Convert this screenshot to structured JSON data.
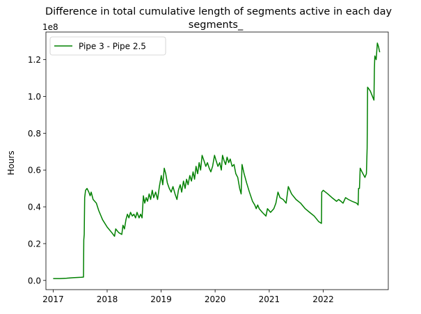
{
  "chart_data": {
    "type": "line",
    "title_line1": "Difference in total cumulative length of segments active in each day",
    "title_line2": "segments_",
    "xlabel": "",
    "ylabel": "Hours",
    "offset_label": "1e8",
    "y_scale_multiplier": 100000000,
    "ylim": [
      -0.05,
      1.35
    ],
    "xlim": [
      "2016-11-13",
      "2023-03-17"
    ],
    "yticks": [
      0.0,
      0.2,
      0.4,
      0.6,
      0.8,
      1.0,
      1.2
    ],
    "ytick_labels": [
      "0.0",
      "0.2",
      "0.4",
      "0.6",
      "0.8",
      "1.0",
      "1.2"
    ],
    "xticks": [
      "2017-01-01",
      "2018-01-01",
      "2019-01-01",
      "2020-01-01",
      "2021-01-01",
      "2022-01-01"
    ],
    "xtick_labels": [
      "2017",
      "2018",
      "2019",
      "2020",
      "2021",
      "2022"
    ],
    "grid": false,
    "legend_position": "upper-left",
    "series": [
      {
        "name": "Pipe 3 - Pipe 2.5",
        "color": "#008000",
        "points": [
          [
            "2017-01-01",
            0.01
          ],
          [
            "2017-02-15",
            0.01
          ],
          [
            "2017-04-01",
            0.012
          ],
          [
            "2017-05-15",
            0.015
          ],
          [
            "2017-07-10",
            0.017
          ],
          [
            "2017-07-25",
            0.018
          ],
          [
            "2017-07-27",
            0.22
          ],
          [
            "2017-07-30",
            0.25
          ],
          [
            "2017-08-02",
            0.45
          ],
          [
            "2017-08-08",
            0.49
          ],
          [
            "2017-08-18",
            0.5
          ],
          [
            "2017-08-30",
            0.48
          ],
          [
            "2017-09-08",
            0.46
          ],
          [
            "2017-09-15",
            0.48
          ],
          [
            "2017-09-28",
            0.44
          ],
          [
            "2017-10-20",
            0.42
          ],
          [
            "2017-11-05",
            0.38
          ],
          [
            "2017-12-01",
            0.33
          ],
          [
            "2018-01-01",
            0.29
          ],
          [
            "2018-02-01",
            0.26
          ],
          [
            "2018-02-20",
            0.24
          ],
          [
            "2018-02-28",
            0.28
          ],
          [
            "2018-03-20",
            0.26
          ],
          [
            "2018-04-10",
            0.25
          ],
          [
            "2018-04-18",
            0.3
          ],
          [
            "2018-04-28",
            0.28
          ],
          [
            "2018-05-08",
            0.33
          ],
          [
            "2018-05-18",
            0.36
          ],
          [
            "2018-05-28",
            0.34
          ],
          [
            "2018-06-08",
            0.37
          ],
          [
            "2018-06-20",
            0.35
          ],
          [
            "2018-07-01",
            0.36
          ],
          [
            "2018-07-12",
            0.34
          ],
          [
            "2018-07-22",
            0.37
          ],
          [
            "2018-08-05",
            0.34
          ],
          [
            "2018-08-15",
            0.36
          ],
          [
            "2018-08-25",
            0.34
          ],
          [
            "2018-09-03",
            0.46
          ],
          [
            "2018-09-12",
            0.42
          ],
          [
            "2018-09-22",
            0.45
          ],
          [
            "2018-10-01",
            0.43
          ],
          [
            "2018-10-12",
            0.47
          ],
          [
            "2018-10-22",
            0.44
          ],
          [
            "2018-11-02",
            0.49
          ],
          [
            "2018-11-12",
            0.45
          ],
          [
            "2018-11-25",
            0.48
          ],
          [
            "2018-12-08",
            0.44
          ],
          [
            "2018-12-20",
            0.51
          ],
          [
            "2019-01-02",
            0.57
          ],
          [
            "2019-01-12",
            0.52
          ],
          [
            "2019-01-22",
            0.61
          ],
          [
            "2019-02-01",
            0.58
          ],
          [
            "2019-02-12",
            0.53
          ],
          [
            "2019-02-25",
            0.5
          ],
          [
            "2019-03-10",
            0.48
          ],
          [
            "2019-03-22",
            0.51
          ],
          [
            "2019-04-05",
            0.47
          ],
          [
            "2019-04-18",
            0.44
          ],
          [
            "2019-04-28",
            0.49
          ],
          [
            "2019-05-10",
            0.52
          ],
          [
            "2019-05-20",
            0.48
          ],
          [
            "2019-06-01",
            0.54
          ],
          [
            "2019-06-12",
            0.5
          ],
          [
            "2019-06-22",
            0.55
          ],
          [
            "2019-07-02",
            0.52
          ],
          [
            "2019-07-14",
            0.57
          ],
          [
            "2019-07-25",
            0.54
          ],
          [
            "2019-08-05",
            0.59
          ],
          [
            "2019-08-15",
            0.55
          ],
          [
            "2019-08-25",
            0.62
          ],
          [
            "2019-09-05",
            0.58
          ],
          [
            "2019-09-15",
            0.64
          ],
          [
            "2019-09-25",
            0.6
          ],
          [
            "2019-10-05",
            0.68
          ],
          [
            "2019-10-18",
            0.65
          ],
          [
            "2019-10-30",
            0.62
          ],
          [
            "2019-11-10",
            0.64
          ],
          [
            "2019-11-22",
            0.61
          ],
          [
            "2019-12-03",
            0.59
          ],
          [
            "2019-12-15",
            0.62
          ],
          [
            "2019-12-28",
            0.68
          ],
          [
            "2020-01-08",
            0.65
          ],
          [
            "2020-01-20",
            0.62
          ],
          [
            "2020-02-01",
            0.64
          ],
          [
            "2020-02-12",
            0.6
          ],
          [
            "2020-02-20",
            0.68
          ],
          [
            "2020-03-02",
            0.65
          ],
          [
            "2020-03-12",
            0.63
          ],
          [
            "2020-03-22",
            0.67
          ],
          [
            "2020-04-02",
            0.64
          ],
          [
            "2020-04-12",
            0.66
          ],
          [
            "2020-04-25",
            0.62
          ],
          [
            "2020-05-08",
            0.63
          ],
          [
            "2020-05-20",
            0.58
          ],
          [
            "2020-06-02",
            0.56
          ],
          [
            "2020-06-15",
            0.5
          ],
          [
            "2020-06-25",
            0.47
          ],
          [
            "2020-07-01",
            0.63
          ],
          [
            "2020-07-15",
            0.58
          ],
          [
            "2020-08-01",
            0.53
          ],
          [
            "2020-08-20",
            0.48
          ],
          [
            "2020-09-10",
            0.43
          ],
          [
            "2020-09-25",
            0.41
          ],
          [
            "2020-10-05",
            0.39
          ],
          [
            "2020-10-15",
            0.41
          ],
          [
            "2020-10-25",
            0.39
          ],
          [
            "2020-11-15",
            0.37
          ],
          [
            "2020-12-10",
            0.35
          ],
          [
            "2020-12-20",
            0.39
          ],
          [
            "2021-01-10",
            0.37
          ],
          [
            "2021-02-01",
            0.39
          ],
          [
            "2021-02-15",
            0.42
          ],
          [
            "2021-03-01",
            0.48
          ],
          [
            "2021-03-15",
            0.45
          ],
          [
            "2021-04-05",
            0.44
          ],
          [
            "2021-04-25",
            0.42
          ],
          [
            "2021-05-10",
            0.51
          ],
          [
            "2021-06-01",
            0.47
          ],
          [
            "2021-07-01",
            0.44
          ],
          [
            "2021-08-01",
            0.42
          ],
          [
            "2021-09-01",
            0.39
          ],
          [
            "2021-10-01",
            0.37
          ],
          [
            "2021-11-01",
            0.35
          ],
          [
            "2021-12-01",
            0.32
          ],
          [
            "2021-12-20",
            0.31
          ],
          [
            "2021-12-22",
            0.48
          ],
          [
            "2022-01-01",
            0.49
          ],
          [
            "2022-02-01",
            0.47
          ],
          [
            "2022-03-01",
            0.45
          ],
          [
            "2022-04-01",
            0.43
          ],
          [
            "2022-04-15",
            0.44
          ],
          [
            "2022-05-01",
            0.43
          ],
          [
            "2022-05-15",
            0.42
          ],
          [
            "2022-06-01",
            0.45
          ],
          [
            "2022-06-20",
            0.44
          ],
          [
            "2022-07-15",
            0.43
          ],
          [
            "2022-08-15",
            0.42
          ],
          [
            "2022-08-25",
            0.41
          ],
          [
            "2022-08-28",
            0.5
          ],
          [
            "2022-09-03",
            0.5
          ],
          [
            "2022-09-08",
            0.61
          ],
          [
            "2022-09-20",
            0.59
          ],
          [
            "2022-10-10",
            0.56
          ],
          [
            "2022-10-20",
            0.58
          ],
          [
            "2022-10-25",
            0.72
          ],
          [
            "2022-10-28",
            1.05
          ],
          [
            "2022-11-15",
            1.03
          ],
          [
            "2022-12-10",
            0.98
          ],
          [
            "2022-12-13",
            1.15
          ],
          [
            "2022-12-16",
            1.22
          ],
          [
            "2022-12-25",
            1.2
          ],
          [
            "2023-01-02",
            1.29
          ],
          [
            "2023-01-10",
            1.27
          ],
          [
            "2023-01-18",
            1.24
          ]
        ]
      }
    ]
  }
}
